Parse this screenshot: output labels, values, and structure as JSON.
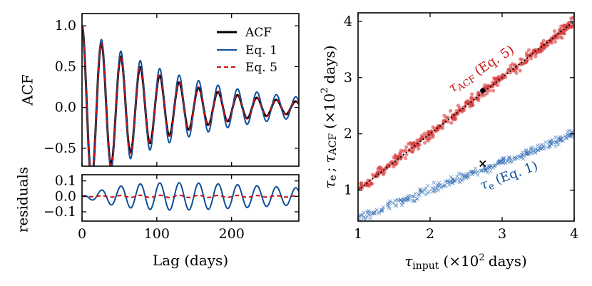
{
  "colors": {
    "acf": "#000000",
    "eq1": "#0d4f9a",
    "eq5": "#cc1111",
    "scatter_red": "#d83a3a",
    "scatter_blue": "#3a72b8",
    "identity": "#000000"
  },
  "chart_data": [
    {
      "id": "acf",
      "type": "line",
      "ylabel": "ACF",
      "xlim": [
        0,
        290
      ],
      "ylim": [
        -0.72,
        1.15
      ],
      "yticks": [
        -0.5,
        0.0,
        0.5,
        1.0
      ],
      "ytick_labels": [
        "−0.5",
        "0.0",
        "0.5",
        "1.0"
      ],
      "xticks": [
        0,
        100,
        200
      ],
      "period_days": 26,
      "acf_decay_days": 110,
      "eq1_decay_days": 140,
      "legend": {
        "position": "top-right",
        "entries": [
          {
            "key": "acf",
            "label": "ACF"
          },
          {
            "key": "eq1",
            "label": "Eq. 1"
          },
          {
            "key": "eq5",
            "label": "Eq. 5"
          }
        ]
      }
    },
    {
      "id": "residuals",
      "type": "line",
      "ylabel": "residuals",
      "xlabel": "Lag (days)",
      "xlim": [
        0,
        290
      ],
      "ylim": [
        -0.16,
        0.14
      ],
      "yticks": [
        -0.1,
        0.0,
        0.1
      ],
      "ytick_labels": [
        "−0.1",
        "0.0",
        "0.1"
      ],
      "xticks": [
        0,
        100,
        200
      ],
      "xtick_labels": [
        "0",
        "100",
        "200"
      ]
    },
    {
      "id": "scatter",
      "type": "scatter",
      "xlim": [
        1,
        4
      ],
      "ylim": [
        0.45,
        4.15
      ],
      "xticks": [
        1,
        2,
        3,
        4
      ],
      "xtick_labels": [
        "1",
        "2",
        "3",
        "4"
      ],
      "yticks": [
        1,
        2,
        3,
        4
      ],
      "ytick_labels": [
        "1",
        "2",
        "3",
        "4"
      ],
      "xlabel_sym": "τ",
      "xlabel_sub": "input",
      "xlabel_unit_open": "(×10",
      "xlabel_unit_exp": "2",
      "xlabel_unit_close": "days)",
      "ylabel_sym1": "τ",
      "ylabel_sub1": "e",
      "ylabel_sep": ";",
      "ylabel_sym2": "τ",
      "ylabel_sub2": "ACF",
      "ylabel_unit_open": "(×10",
      "ylabel_unit_exp": "2",
      "ylabel_unit_close": "days)",
      "identity_line": {
        "x": [
          1,
          4
        ],
        "y": [
          1,
          4
        ]
      },
      "acf_series": {
        "slope": 1.0,
        "intercept": 0.0,
        "scatter": 0.05,
        "n": 400,
        "marker": [
          2.73,
          2.77
        ]
      },
      "eq1_series": {
        "slope": 0.5,
        "intercept": 0.0,
        "scatter": 0.04,
        "n": 300,
        "marker": [
          2.73,
          1.47
        ]
      },
      "annotations": {
        "acf_sym": "τ",
        "acf_sub": "ACF",
        "acf_ref": "(Eq. 5)",
        "eq1_sym": "τ",
        "eq1_sub": "e",
        "eq1_ref": "(Eq. 1)"
      }
    }
  ]
}
